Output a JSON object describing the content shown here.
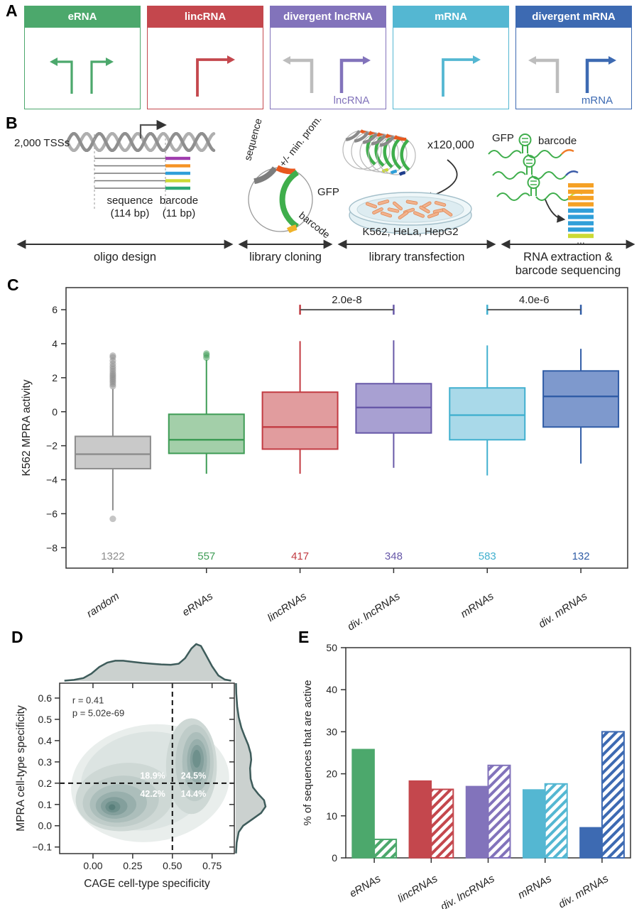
{
  "panels": {
    "a": {
      "label": "A",
      "classes": [
        {
          "name": "eRNA",
          "color": "#4CA86C",
          "arrow": "bidirectional",
          "sublabel": ""
        },
        {
          "name": "lincRNA",
          "color": "#C4474D",
          "arrow": "single-right",
          "sublabel": ""
        },
        {
          "name": "divergent lncRNA",
          "color": "#8273BB",
          "arrow": "divergent",
          "sublabel": "lncRNA"
        },
        {
          "name": "mRNA",
          "color": "#54B7D2",
          "arrow": "single-right",
          "sublabel": ""
        },
        {
          "name": "divergent mRNA",
          "color": "#3D6AB2",
          "arrow": "divergent",
          "sublabel": "mRNA"
        }
      ]
    },
    "b": {
      "label": "B",
      "tss_label": "2,000 TSSs",
      "oligo": {
        "sequence_label": "sequence",
        "sequence_bp": "(114 bp)",
        "barcode_label": "barcode",
        "barcode_bp": "(11 bp)",
        "tip_colors": [
          "#A03DAE",
          "#F59325",
          "#2F9FD9",
          "#CBD934",
          "#2BA878"
        ]
      },
      "plasmid": {
        "sequence": "sequence",
        "promoter": "+/- min. prom.",
        "gfp": "GFP",
        "barcode": "barcode"
      },
      "transfection": {
        "copies": "x120,000",
        "cells": "K562, HeLa, HepG2"
      },
      "extraction": {
        "gfp": "GFP",
        "barcode": "barcode",
        "ellipsis": "...",
        "bar_colors": [
          "#F5A125",
          "#F5A125",
          "#F5A125",
          "#F5A125",
          "#2F9FD9",
          "#2F9FD9",
          "#2F9FD9",
          "#2F9FD9",
          "#CBD934"
        ],
        "tail_colors": [
          "#F07C28",
          "#3B5BA8",
          "#CBD934"
        ]
      },
      "stages": [
        "oligo design",
        "library cloning",
        "library transfection",
        "RNA extraction &|barcode sequencing"
      ]
    },
    "c": {
      "label": "C"
    },
    "d": {
      "label": "D"
    },
    "e": {
      "label": "E"
    }
  },
  "chart_data": [
    {
      "id": "panel-c",
      "type": "boxplot",
      "ylabel": "K562 MPRA activity",
      "ylim": [
        -9.2,
        7.3
      ],
      "yticks": [
        6,
        4,
        2,
        0,
        -2,
        -4,
        -6,
        -8
      ],
      "categories": [
        "random",
        "eRNAs",
        "lincRNAs",
        "div. lncRNAs",
        "mRNAs",
        "div. mRNAs"
      ],
      "counts": [
        "1322",
        "557",
        "417",
        "348",
        "583",
        "132"
      ],
      "boxes": [
        {
          "whislo": -5.8,
          "q1": -3.35,
          "med": -2.5,
          "q3": -1.45,
          "whishi": 1.35,
          "outliers": [
            1.5,
            1.62,
            1.74,
            1.85,
            1.95,
            2.05,
            2.15,
            2.25,
            2.38,
            2.52,
            2.66,
            2.82,
            3.0,
            3.2,
            3.3,
            -6.3
          ],
          "fill": "#C9C9C9",
          "stroke": "#8C8C8C"
        },
        {
          "whislo": -3.65,
          "q1": -2.45,
          "med": -1.65,
          "q3": -0.15,
          "whishi": 3.05,
          "outliers": [
            3.18,
            3.32,
            3.42
          ],
          "fill": "#A3CFA9",
          "stroke": "#3E9C55"
        },
        {
          "whislo": -3.65,
          "q1": -2.2,
          "med": -0.9,
          "q3": 1.15,
          "whishi": 4.15,
          "outliers": [],
          "fill": "#E19C9E",
          "stroke": "#C23B42"
        },
        {
          "whislo": -3.3,
          "q1": -1.25,
          "med": 0.25,
          "q3": 1.65,
          "whishi": 4.2,
          "outliers": [],
          "fill": "#A8A0D2",
          "stroke": "#6758A8"
        },
        {
          "whislo": -3.75,
          "q1": -1.65,
          "med": -0.2,
          "q3": 1.4,
          "whishi": 3.9,
          "outliers": [],
          "fill": "#A9D9E9",
          "stroke": "#41B0CF"
        },
        {
          "whislo": -3.05,
          "q1": -0.9,
          "med": 0.9,
          "q3": 2.4,
          "whishi": 3.7,
          "outliers": [],
          "fill": "#7E99CD",
          "stroke": "#305CA6"
        }
      ],
      "significance": [
        {
          "from": 2,
          "to": 3,
          "label": "2.0e-8",
          "y": 6.0
        },
        {
          "from": 4,
          "to": 5,
          "label": "4.0e-6",
          "y": 6.0
        }
      ]
    },
    {
      "id": "panel-d",
      "type": "density-joint",
      "xlabel": "CAGE cell-type specificity",
      "ylabel": "MPRA cell-type specificity",
      "xlim": [
        -0.21,
        0.89
      ],
      "ylim": [
        -0.131,
        0.67
      ],
      "xticks": [
        0.0,
        0.25,
        0.5,
        0.75
      ],
      "yticks": [
        -0.1,
        0.0,
        0.1,
        0.2,
        0.3,
        0.4,
        0.5,
        0.6
      ],
      "annotation": [
        "r = 0.41",
        "p = 5.02e-69"
      ],
      "thresholds": {
        "x": 0.5,
        "y": 0.2
      },
      "quadrants": {
        "top_left": "18.9%",
        "top_right": "24.5%",
        "bottom_left": "42.2%",
        "bottom_right": "14.4%"
      },
      "modes": [
        {
          "x": 0.12,
          "y": 0.09
        },
        {
          "x": 0.65,
          "y": 0.31
        }
      ],
      "palette": [
        "#E9EEEC",
        "#DCE4E2",
        "#CED8D5",
        "#BFCCC9",
        "#ACBEBB",
        "#98AFAC",
        "#839F9C",
        "#6E908C",
        "#597F7B"
      ],
      "contour_levels": [
        {
          "cx": 0.36,
          "cy": 0.2,
          "rx": 0.5,
          "ry": 0.275,
          "rot": -8,
          "level": 0
        },
        {
          "cx": 0.33,
          "cy": 0.21,
          "rx": 0.41,
          "ry": 0.23,
          "rot": -10,
          "level": 1
        },
        {
          "cx": 0.2,
          "cy": 0.135,
          "rx": 0.31,
          "ry": 0.16,
          "rot": -6,
          "level": 2
        },
        {
          "cx": 0.62,
          "cy": 0.28,
          "rx": 0.16,
          "ry": 0.225,
          "rot": 0,
          "level": 2
        },
        {
          "cx": 0.175,
          "cy": 0.115,
          "rx": 0.24,
          "ry": 0.12,
          "rot": -5,
          "level": 3
        },
        {
          "cx": 0.64,
          "cy": 0.295,
          "rx": 0.12,
          "ry": 0.18,
          "rot": 0,
          "level": 3
        },
        {
          "cx": 0.16,
          "cy": 0.105,
          "rx": 0.18,
          "ry": 0.09,
          "rot": -4,
          "level": 4
        },
        {
          "cx": 0.65,
          "cy": 0.3,
          "rx": 0.088,
          "ry": 0.14,
          "rot": 0,
          "level": 4
        },
        {
          "cx": 0.145,
          "cy": 0.097,
          "rx": 0.128,
          "ry": 0.064,
          "rot": -3,
          "level": 5
        },
        {
          "cx": 0.655,
          "cy": 0.305,
          "rx": 0.063,
          "ry": 0.102,
          "rot": 0,
          "level": 5
        },
        {
          "cx": 0.133,
          "cy": 0.092,
          "rx": 0.084,
          "ry": 0.043,
          "rot": 0,
          "level": 6
        },
        {
          "cx": 0.655,
          "cy": 0.31,
          "rx": 0.043,
          "ry": 0.07,
          "rot": 0,
          "level": 6
        },
        {
          "cx": 0.125,
          "cy": 0.089,
          "rx": 0.047,
          "ry": 0.027,
          "rot": 0,
          "level": 7
        },
        {
          "cx": 0.653,
          "cy": 0.315,
          "rx": 0.026,
          "ry": 0.042,
          "rot": 0,
          "level": 7
        },
        {
          "cx": 0.12,
          "cy": 0.087,
          "rx": 0.021,
          "ry": 0.014,
          "rot": 0,
          "level": 8
        }
      ],
      "top_marginal": [
        [
          -0.18,
          0.01
        ],
        [
          -0.12,
          0.03
        ],
        [
          -0.06,
          0.08
        ],
        [
          -0.01,
          0.2
        ],
        [
          0.04,
          0.38
        ],
        [
          0.09,
          0.5
        ],
        [
          0.14,
          0.55
        ],
        [
          0.19,
          0.55
        ],
        [
          0.25,
          0.52
        ],
        [
          0.31,
          0.49
        ],
        [
          0.37,
          0.47
        ],
        [
          0.43,
          0.45
        ],
        [
          0.49,
          0.44
        ],
        [
          0.54,
          0.47
        ],
        [
          0.58,
          0.62
        ],
        [
          0.62,
          0.88
        ],
        [
          0.65,
          1.0
        ],
        [
          0.68,
          0.95
        ],
        [
          0.71,
          0.72
        ],
        [
          0.75,
          0.4
        ],
        [
          0.79,
          0.15
        ],
        [
          0.83,
          0.04
        ],
        [
          0.87,
          0.01
        ]
      ],
      "right_marginal": [
        [
          -0.13,
          0.01
        ],
        [
          -0.08,
          0.03
        ],
        [
          -0.03,
          0.1
        ],
        [
          0.0,
          0.25
        ],
        [
          0.03,
          0.55
        ],
        [
          0.06,
          0.85
        ],
        [
          0.09,
          1.0
        ],
        [
          0.12,
          0.95
        ],
        [
          0.15,
          0.75
        ],
        [
          0.18,
          0.58
        ],
        [
          0.22,
          0.5
        ],
        [
          0.27,
          0.48
        ],
        [
          0.31,
          0.52
        ],
        [
          0.34,
          0.5
        ],
        [
          0.38,
          0.42
        ],
        [
          0.42,
          0.3
        ],
        [
          0.46,
          0.19
        ],
        [
          0.51,
          0.1
        ],
        [
          0.56,
          0.05
        ],
        [
          0.62,
          0.02
        ],
        [
          0.67,
          0.01
        ]
      ],
      "marginal_fill": "#CBD1CF",
      "marginal_stroke": "#3E5C5B"
    },
    {
      "id": "panel-e",
      "type": "bar",
      "ylabel": "% of sequences that are active",
      "ylim": [
        0,
        50
      ],
      "yticks": [
        0,
        10,
        20,
        30,
        40,
        50
      ],
      "categories": [
        "eRNAs",
        "lincRNAs",
        "div. lncRNAs",
        "mRNAs",
        "div. mRNAs"
      ],
      "series": [
        {
          "name": "solid",
          "style": "solid",
          "values": [
            25.8,
            18.3,
            17.0,
            16.2,
            7.2
          ]
        },
        {
          "name": "hatched",
          "style": "hatched",
          "values": [
            4.4,
            16.3,
            22.0,
            17.6,
            30.0
          ]
        }
      ],
      "colors": [
        "#4CA86C",
        "#C4474D",
        "#8273BB",
        "#54B7D2",
        "#3D6AB2"
      ]
    }
  ]
}
